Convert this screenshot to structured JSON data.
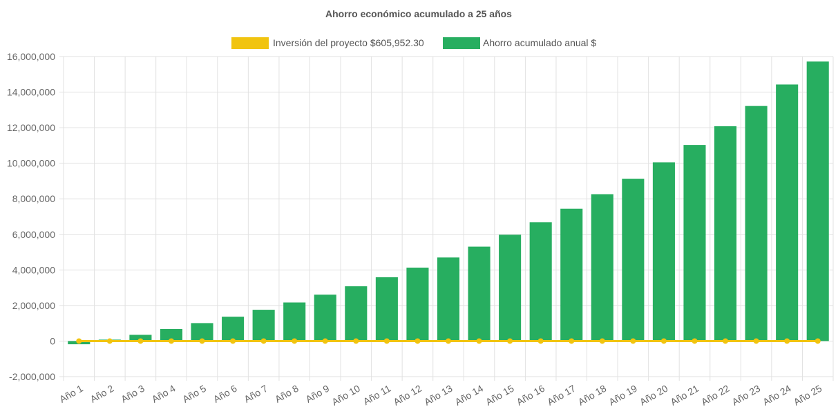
{
  "chart_data": {
    "type": "bar",
    "title": "Ahorro económico acumulado a 25 años",
    "xlabel": "",
    "ylabel": "",
    "ylim": [
      -2000000,
      16000000
    ],
    "yticks": [
      -2000000,
      0,
      2000000,
      4000000,
      6000000,
      8000000,
      10000000,
      12000000,
      14000000,
      16000000
    ],
    "ytick_labels": [
      "-2,000,000",
      "0",
      "2,000,000",
      "4,000,000",
      "6,000,000",
      "8,000,000",
      "10,000,000",
      "12,000,000",
      "14,000,000",
      "16,000,000"
    ],
    "categories": [
      "Año 1",
      "Año 2",
      "Año 3",
      "Año 4",
      "Año 5",
      "Año 6",
      "Año 7",
      "Año 8",
      "Año 9",
      "Año 10",
      "Año 11",
      "Año 12",
      "Año 13",
      "Año 14",
      "Año 15",
      "Año 16",
      "Año 17",
      "Año 18",
      "Año 19",
      "Año 20",
      "Año 21",
      "Año 22",
      "Año 23",
      "Año 24",
      "Año 25"
    ],
    "grid": true,
    "legend_position": "top-center",
    "series": [
      {
        "name": "Inversión del proyecto $605,952.30",
        "type": "line",
        "color": "#f1c40f",
        "values": [
          0,
          0,
          0,
          0,
          0,
          0,
          0,
          0,
          0,
          0,
          0,
          0,
          0,
          0,
          0,
          0,
          0,
          0,
          0,
          0,
          0,
          0,
          0,
          0,
          0
        ]
      },
      {
        "name": "Ahorro acumulado anual $",
        "type": "bar",
        "color": "#27ae60",
        "values": [
          -180000,
          80000,
          350000,
          680000,
          1010000,
          1370000,
          1760000,
          2170000,
          2610000,
          3080000,
          3590000,
          4130000,
          4700000,
          5310000,
          5980000,
          6680000,
          7440000,
          8260000,
          9130000,
          10050000,
          11030000,
          12080000,
          13220000,
          14430000,
          15720000
        ]
      }
    ]
  }
}
